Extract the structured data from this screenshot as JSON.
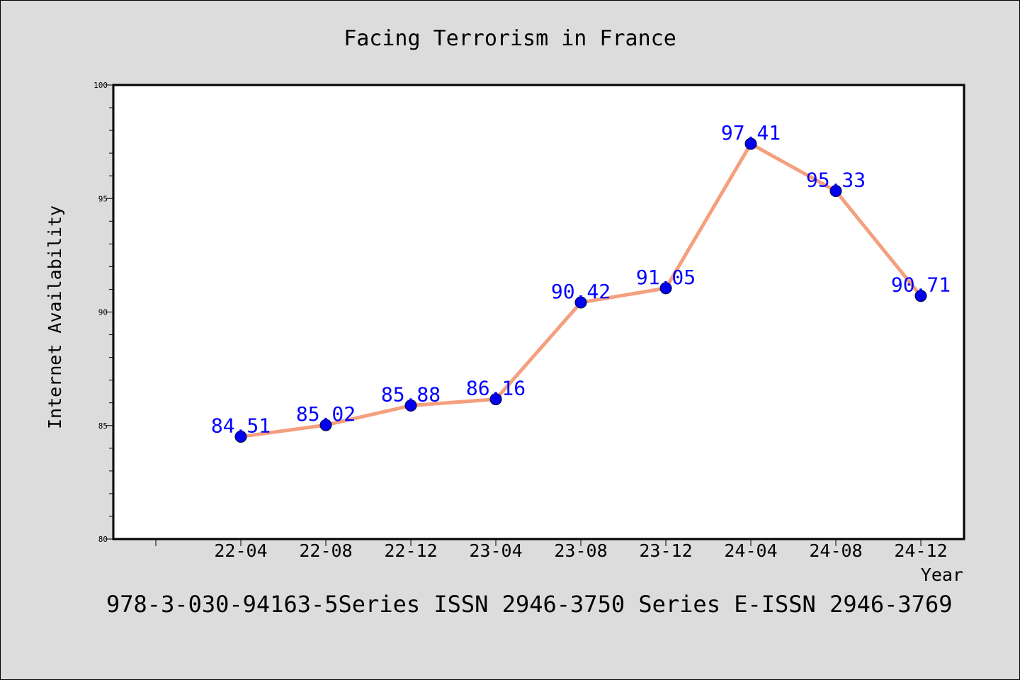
{
  "chart_data": {
    "type": "line",
    "title": "Facing Terrorism in France",
    "xlabel": "Year",
    "ylabel": "Internet Availability",
    "footer": "978-3-030-94163-5Series ISSN 2946-3750 Series E-ISSN 2946-3769",
    "categories": [
      "22-04",
      "22-08",
      "22-12",
      "23-04",
      "23-08",
      "23-12",
      "24-04",
      "24-08",
      "24-12"
    ],
    "series": [
      {
        "values": [
          84.51,
          85.02,
          85.88,
          86.16,
          90.42,
          91.05,
          97.41,
          95.33,
          90.71
        ],
        "line_color": "#f4a07e",
        "marker_color": "#0000ee",
        "label_color": "#0000ff"
      }
    ],
    "data_labels": [
      "84.51",
      "85.02",
      "85.88",
      "86.16",
      "90.42",
      "91.05",
      "97.41",
      "95.33",
      "90.71"
    ],
    "ylim": [
      80,
      100
    ],
    "yticks": [
      "80",
      "85",
      "90",
      "95",
      "100"
    ],
    "grid": false,
    "background": "#dcdcdc",
    "plot_background": "#ffffff"
  }
}
